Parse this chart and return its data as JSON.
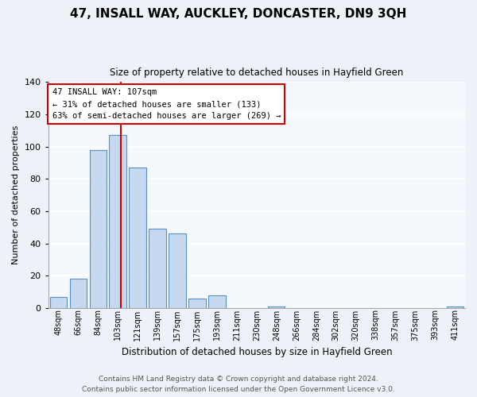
{
  "title": "47, INSALL WAY, AUCKLEY, DONCASTER, DN9 3QH",
  "subtitle": "Size of property relative to detached houses in Hayfield Green",
  "xlabel": "Distribution of detached houses by size in Hayfield Green",
  "ylabel": "Number of detached properties",
  "bar_labels": [
    "48sqm",
    "66sqm",
    "84sqm",
    "103sqm",
    "121sqm",
    "139sqm",
    "157sqm",
    "175sqm",
    "193sqm",
    "211sqm",
    "230sqm",
    "248sqm",
    "266sqm",
    "284sqm",
    "302sqm",
    "320sqm",
    "338sqm",
    "357sqm",
    "375sqm",
    "393sqm",
    "411sqm"
  ],
  "bar_values": [
    7,
    18,
    98,
    107,
    87,
    49,
    46,
    6,
    8,
    0,
    0,
    1,
    0,
    0,
    0,
    0,
    0,
    0,
    0,
    0,
    1
  ],
  "bar_color": "#c6d9f0",
  "bar_edge_color": "#5a8fc3",
  "property_line_label": "47 INSALL WAY: 107sqm",
  "annotation_line1": "← 31% of detached houses are smaller (133)",
  "annotation_line2": "63% of semi-detached houses are larger (269) →",
  "annotation_box_color": "#ffffff",
  "annotation_box_edge": "#cc0000",
  "vline_color": "#cc0000",
  "vline_x_index": 3.15,
  "ylim": [
    0,
    140
  ],
  "yticks": [
    0,
    20,
    40,
    60,
    80,
    100,
    120,
    140
  ],
  "footer_line1": "Contains HM Land Registry data © Crown copyright and database right 2024.",
  "footer_line2": "Contains public sector information licensed under the Open Government Licence v3.0.",
  "bg_color": "#eef2f8",
  "plot_bg_color": "#f5f8fd",
  "grid_color": "#ffffff"
}
